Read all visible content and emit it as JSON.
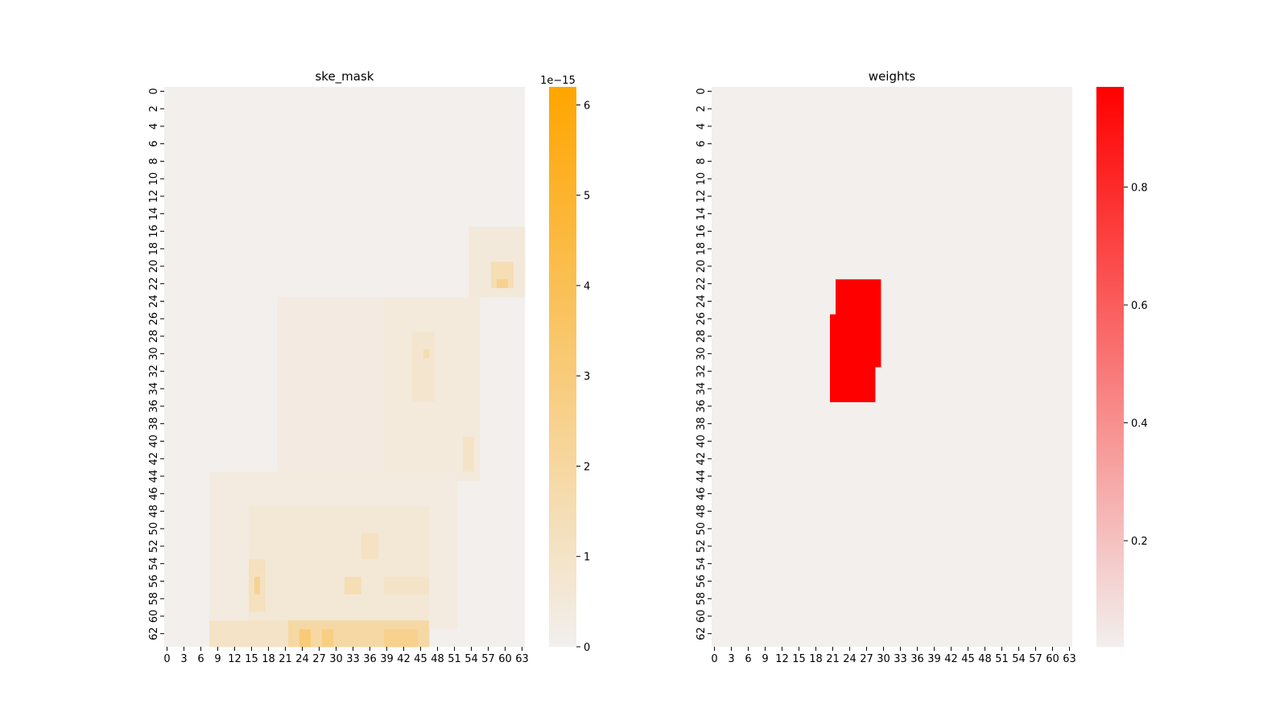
{
  "chart_data": [
    {
      "type": "heatmap",
      "title": "ske_mask",
      "rows": 64,
      "cols": 64,
      "y_ticks": [
        "0",
        "2",
        "4",
        "6",
        "8",
        "10",
        "12",
        "14",
        "16",
        "18",
        "20",
        "22",
        "24",
        "26",
        "28",
        "30",
        "32",
        "34",
        "36",
        "38",
        "40",
        "42",
        "44",
        "46",
        "48",
        "50",
        "52",
        "54",
        "56",
        "58",
        "60",
        "62"
      ],
      "x_ticks": [
        "0",
        "3",
        "6",
        "9",
        "12",
        "15",
        "18",
        "21",
        "24",
        "27",
        "30",
        "33",
        "36",
        "39",
        "42",
        "45",
        "48",
        "51",
        "54",
        "57",
        "60",
        "63"
      ],
      "colorbar": {
        "min": 0,
        "max": 6.2,
        "ticks": [
          "0",
          "1",
          "2",
          "3",
          "4",
          "5",
          "6"
        ],
        "offset_label": "1e−15",
        "color_low": "#f2efed",
        "color_high": "#ffa500"
      },
      "values_unit": "1e-15",
      "patches": [
        {
          "rows": [
            16,
            24
          ],
          "cols": [
            54,
            64
          ],
          "value": 0.5
        },
        {
          "rows": [
            20,
            23
          ],
          "cols": [
            58,
            62
          ],
          "value": 1.5
        },
        {
          "rows": [
            22,
            23
          ],
          "cols": [
            59,
            61
          ],
          "value": 2.5
        },
        {
          "rows": [
            24,
            48
          ],
          "cols": [
            20,
            40
          ],
          "value": 0.3
        },
        {
          "rows": [
            24,
            45
          ],
          "cols": [
            39,
            56
          ],
          "value": 0.45
        },
        {
          "rows": [
            28,
            36
          ],
          "cols": [
            44,
            48
          ],
          "value": 0.8
        },
        {
          "rows": [
            30,
            31
          ],
          "cols": [
            46,
            47
          ],
          "value": 1.6
        },
        {
          "rows": [
            36,
            42
          ],
          "cols": [
            24,
            35
          ],
          "value": 0.3
        },
        {
          "rows": [
            40,
            44
          ],
          "cols": [
            53,
            55
          ],
          "value": 1.0
        },
        {
          "rows": [
            44,
            62
          ],
          "cols": [
            8,
            52
          ],
          "value": 0.35
        },
        {
          "rows": [
            48,
            62
          ],
          "cols": [
            15,
            47
          ],
          "value": 0.6
        },
        {
          "rows": [
            51,
            54
          ],
          "cols": [
            35,
            38
          ],
          "value": 1.1
        },
        {
          "rows": [
            54,
            60
          ],
          "cols": [
            15,
            18
          ],
          "value": 1.2
        },
        {
          "rows": [
            56,
            58
          ],
          "cols": [
            16,
            17
          ],
          "value": 2.4
        },
        {
          "rows": [
            56,
            58
          ],
          "cols": [
            32,
            35
          ],
          "value": 1.5
        },
        {
          "rows": [
            56,
            58
          ],
          "cols": [
            39,
            47
          ],
          "value": 1.0
        },
        {
          "rows": [
            61,
            64
          ],
          "cols": [
            8,
            47
          ],
          "value": 1.0
        },
        {
          "rows": [
            61,
            64
          ],
          "cols": [
            22,
            47
          ],
          "value": 1.9
        },
        {
          "rows": [
            62,
            64
          ],
          "cols": [
            24,
            26
          ],
          "value": 3.1
        },
        {
          "rows": [
            62,
            64
          ],
          "cols": [
            28,
            30
          ],
          "value": 2.8
        },
        {
          "rows": [
            62,
            64
          ],
          "cols": [
            39,
            45
          ],
          "value": 2.5
        }
      ]
    },
    {
      "type": "heatmap",
      "title": "weights",
      "rows": 64,
      "cols": 64,
      "y_ticks": [
        "0",
        "2",
        "4",
        "6",
        "8",
        "10",
        "12",
        "14",
        "16",
        "18",
        "20",
        "22",
        "24",
        "26",
        "28",
        "30",
        "32",
        "34",
        "36",
        "38",
        "40",
        "42",
        "44",
        "46",
        "48",
        "50",
        "52",
        "54",
        "56",
        "58",
        "60",
        "62"
      ],
      "x_ticks": [
        "0",
        "3",
        "6",
        "9",
        "12",
        "15",
        "18",
        "21",
        "24",
        "27",
        "30",
        "33",
        "36",
        "39",
        "42",
        "45",
        "48",
        "51",
        "54",
        "57",
        "60",
        "63"
      ],
      "colorbar": {
        "min": 0.02,
        "max": 0.97,
        "ticks": [
          "0.2",
          "0.4",
          "0.6",
          "0.8"
        ],
        "offset_label": "",
        "color_low": "#f2efed",
        "color_high": "#ff0000"
      },
      "patches": [
        {
          "rows": [
            22,
            26
          ],
          "cols": [
            22,
            30
          ],
          "value": 0.97
        },
        {
          "rows": [
            26,
            32
          ],
          "cols": [
            21,
            30
          ],
          "value": 0.97
        },
        {
          "rows": [
            32,
            36
          ],
          "cols": [
            21,
            29
          ],
          "value": 0.97
        }
      ]
    }
  ]
}
